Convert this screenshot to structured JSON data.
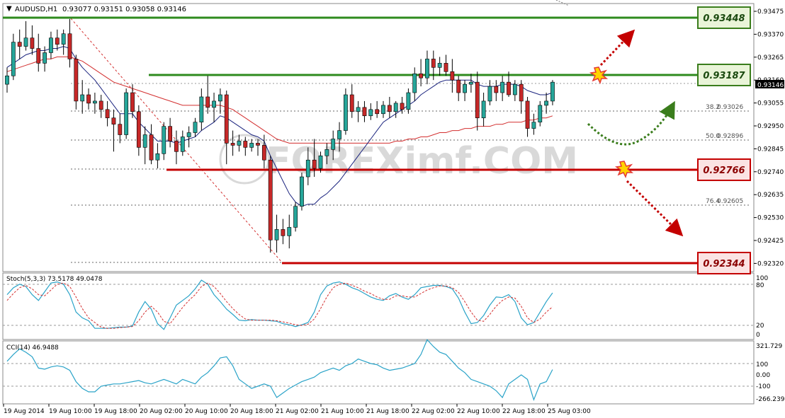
{
  "header": {
    "symbol": "AUDUSD,H1",
    "ohlc": "0.93077 0.93151 0.93058 0.93146"
  },
  "watermark": "FOREXimf.COM",
  "levels": {
    "resist_top": "0.93448",
    "resist_mid": "0.93187",
    "support_mid": "0.92766",
    "support_low": "0.92344",
    "current": "0.93146"
  },
  "fib": [
    {
      "pct": "38.2",
      "value": "0.93026"
    },
    {
      "pct": "50.0",
      "value": "0.92896"
    },
    {
      "pct": "76.4",
      "value": "0.92605"
    }
  ],
  "price_axis_ticks": [
    "0.93475",
    "0.93370",
    "0.93265",
    "0.93160",
    "0.93055",
    "0.92950",
    "0.92845",
    "0.92740",
    "0.92635",
    "0.92530",
    "0.92425",
    "0.92320"
  ],
  "time_axis_ticks": [
    "19 Aug 2014",
    "19 Aug 10:00",
    "19 Aug 18:00",
    "20 Aug 02:00",
    "20 Aug 10:00",
    "20 Aug 18:00",
    "21 Aug 02:00",
    "21 Aug 10:00",
    "21 Aug 18:00",
    "22 Aug 02:00",
    "22 Aug 10:00",
    "22 Aug 18:00",
    "25 Aug 03:00"
  ],
  "stoch": {
    "label": "Stoch(5,3,3) 73.5178 49.0478",
    "ticks": [
      "100",
      "80",
      "20",
      "0"
    ]
  },
  "cci": {
    "label": "CCI(14) 46.9488",
    "ticks": [
      "321.729",
      "100",
      "0.00",
      "-100",
      "-266.2399"
    ]
  },
  "colors": {
    "bull": "#26a69a",
    "bear": "#c62828",
    "resistance": "#2e8b1e",
    "support": "#c40000",
    "ma_fast": "#1a237e",
    "ma_slow": "#d32f2f",
    "stoch_main": "#2aa3c8",
    "stoch_signal": "#d32f2f",
    "cci_line": "#2aa3c8"
  },
  "chart_data": {
    "type": "candlestick",
    "symbol": "AUDUSD",
    "timeframe": "H1",
    "ylim": [
      0.9229,
      0.9349
    ],
    "candles": [
      {
        "o": 0.9314,
        "h": 0.9322,
        "l": 0.931,
        "c": 0.9318
      },
      {
        "o": 0.9318,
        "h": 0.9338,
        "l": 0.9316,
        "c": 0.9334
      },
      {
        "o": 0.9334,
        "h": 0.934,
        "l": 0.9326,
        "c": 0.9332
      },
      {
        "o": 0.9332,
        "h": 0.9344,
        "l": 0.933,
        "c": 0.9336
      },
      {
        "o": 0.9336,
        "h": 0.9342,
        "l": 0.9328,
        "c": 0.9331
      },
      {
        "o": 0.9331,
        "h": 0.9338,
        "l": 0.932,
        "c": 0.9324
      },
      {
        "o": 0.9324,
        "h": 0.9332,
        "l": 0.932,
        "c": 0.9329
      },
      {
        "o": 0.9329,
        "h": 0.9339,
        "l": 0.9326,
        "c": 0.9336
      },
      {
        "o": 0.9336,
        "h": 0.934,
        "l": 0.933,
        "c": 0.9333
      },
      {
        "o": 0.9333,
        "h": 0.934,
        "l": 0.9328,
        "c": 0.9338
      },
      {
        "o": 0.9338,
        "h": 0.9345,
        "l": 0.9322,
        "c": 0.9326
      },
      {
        "o": 0.9326,
        "h": 0.9328,
        "l": 0.9302,
        "c": 0.9306
      },
      {
        "o": 0.9306,
        "h": 0.9316,
        "l": 0.93,
        "c": 0.9309
      },
      {
        "o": 0.9309,
        "h": 0.9312,
        "l": 0.9302,
        "c": 0.9305
      },
      {
        "o": 0.9305,
        "h": 0.931,
        "l": 0.93,
        "c": 0.9306
      },
      {
        "o": 0.9306,
        "h": 0.9309,
        "l": 0.9298,
        "c": 0.9302
      },
      {
        "o": 0.9302,
        "h": 0.9306,
        "l": 0.9294,
        "c": 0.9298
      },
      {
        "o": 0.9298,
        "h": 0.9302,
        "l": 0.9282,
        "c": 0.9295
      },
      {
        "o": 0.9295,
        "h": 0.93,
        "l": 0.9286,
        "c": 0.929
      },
      {
        "o": 0.929,
        "h": 0.9312,
        "l": 0.9288,
        "c": 0.931
      },
      {
        "o": 0.931,
        "h": 0.9314,
        "l": 0.9298,
        "c": 0.9301
      },
      {
        "o": 0.9301,
        "h": 0.9304,
        "l": 0.928,
        "c": 0.9284
      },
      {
        "o": 0.9284,
        "h": 0.9294,
        "l": 0.9276,
        "c": 0.929
      },
      {
        "o": 0.929,
        "h": 0.9295,
        "l": 0.9276,
        "c": 0.9278
      },
      {
        "o": 0.9278,
        "h": 0.9286,
        "l": 0.9274,
        "c": 0.9281
      },
      {
        "o": 0.9281,
        "h": 0.9296,
        "l": 0.9278,
        "c": 0.9294
      },
      {
        "o": 0.9294,
        "h": 0.9298,
        "l": 0.9284,
        "c": 0.9287
      },
      {
        "o": 0.9287,
        "h": 0.9292,
        "l": 0.9276,
        "c": 0.9282
      },
      {
        "o": 0.9282,
        "h": 0.9292,
        "l": 0.928,
        "c": 0.9289
      },
      {
        "o": 0.9289,
        "h": 0.9294,
        "l": 0.9284,
        "c": 0.9291
      },
      {
        "o": 0.9291,
        "h": 0.9298,
        "l": 0.9289,
        "c": 0.9296
      },
      {
        "o": 0.9296,
        "h": 0.9312,
        "l": 0.9292,
        "c": 0.9308
      },
      {
        "o": 0.9308,
        "h": 0.9318,
        "l": 0.93,
        "c": 0.9303
      },
      {
        "o": 0.9303,
        "h": 0.931,
        "l": 0.9296,
        "c": 0.9306
      },
      {
        "o": 0.9306,
        "h": 0.9312,
        "l": 0.93,
        "c": 0.9309
      },
      {
        "o": 0.9309,
        "h": 0.9311,
        "l": 0.9276,
        "c": 0.9286
      },
      {
        "o": 0.9286,
        "h": 0.9292,
        "l": 0.928,
        "c": 0.9285
      },
      {
        "o": 0.9285,
        "h": 0.929,
        "l": 0.9282,
        "c": 0.9287
      },
      {
        "o": 0.9287,
        "h": 0.9289,
        "l": 0.928,
        "c": 0.9284
      },
      {
        "o": 0.9284,
        "h": 0.9288,
        "l": 0.9282,
        "c": 0.9286
      },
      {
        "o": 0.9286,
        "h": 0.9288,
        "l": 0.928,
        "c": 0.9285
      },
      {
        "o": 0.9285,
        "h": 0.929,
        "l": 0.9274,
        "c": 0.9278
      },
      {
        "o": 0.9278,
        "h": 0.928,
        "l": 0.9234,
        "c": 0.924
      },
      {
        "o": 0.924,
        "h": 0.9252,
        "l": 0.9234,
        "c": 0.9245
      },
      {
        "o": 0.9245,
        "h": 0.925,
        "l": 0.9238,
        "c": 0.9242
      },
      {
        "o": 0.9242,
        "h": 0.9252,
        "l": 0.9236,
        "c": 0.9246
      },
      {
        "o": 0.9246,
        "h": 0.9258,
        "l": 0.9244,
        "c": 0.9256
      },
      {
        "o": 0.9256,
        "h": 0.9272,
        "l": 0.9254,
        "c": 0.927
      },
      {
        "o": 0.927,
        "h": 0.9284,
        "l": 0.9266,
        "c": 0.9278
      },
      {
        "o": 0.9278,
        "h": 0.9288,
        "l": 0.927,
        "c": 0.9274
      },
      {
        "o": 0.9274,
        "h": 0.9282,
        "l": 0.9272,
        "c": 0.928
      },
      {
        "o": 0.928,
        "h": 0.9286,
        "l": 0.9276,
        "c": 0.9283
      },
      {
        "o": 0.9283,
        "h": 0.9292,
        "l": 0.9278,
        "c": 0.9288
      },
      {
        "o": 0.9288,
        "h": 0.9296,
        "l": 0.9282,
        "c": 0.9292
      },
      {
        "o": 0.9292,
        "h": 0.9312,
        "l": 0.929,
        "c": 0.9309
      },
      {
        "o": 0.9309,
        "h": 0.9314,
        "l": 0.9298,
        "c": 0.9301
      },
      {
        "o": 0.9301,
        "h": 0.9306,
        "l": 0.9296,
        "c": 0.9303
      },
      {
        "o": 0.9303,
        "h": 0.9306,
        "l": 0.9296,
        "c": 0.9299
      },
      {
        "o": 0.9299,
        "h": 0.9305,
        "l": 0.9297,
        "c": 0.9302
      },
      {
        "o": 0.9302,
        "h": 0.9306,
        "l": 0.9298,
        "c": 0.93
      },
      {
        "o": 0.93,
        "h": 0.9306,
        "l": 0.9298,
        "c": 0.9304
      },
      {
        "o": 0.9304,
        "h": 0.9308,
        "l": 0.9298,
        "c": 0.9301
      },
      {
        "o": 0.9301,
        "h": 0.9306,
        "l": 0.9298,
        "c": 0.9305
      },
      {
        "o": 0.9305,
        "h": 0.9308,
        "l": 0.93,
        "c": 0.9302
      },
      {
        "o": 0.9302,
        "h": 0.9312,
        "l": 0.93,
        "c": 0.931
      },
      {
        "o": 0.931,
        "h": 0.9322,
        "l": 0.9306,
        "c": 0.9319
      },
      {
        "o": 0.9319,
        "h": 0.9326,
        "l": 0.9313,
        "c": 0.9317
      },
      {
        "o": 0.9317,
        "h": 0.933,
        "l": 0.9314,
        "c": 0.9326
      },
      {
        "o": 0.9326,
        "h": 0.933,
        "l": 0.9316,
        "c": 0.9322
      },
      {
        "o": 0.9322,
        "h": 0.9327,
        "l": 0.9318,
        "c": 0.9324
      },
      {
        "o": 0.9324,
        "h": 0.9328,
        "l": 0.9318,
        "c": 0.932
      },
      {
        "o": 0.932,
        "h": 0.9326,
        "l": 0.931,
        "c": 0.9316
      },
      {
        "o": 0.9316,
        "h": 0.9318,
        "l": 0.9306,
        "c": 0.931
      },
      {
        "o": 0.931,
        "h": 0.9316,
        "l": 0.9306,
        "c": 0.9314
      },
      {
        "o": 0.9314,
        "h": 0.9319,
        "l": 0.931,
        "c": 0.9315
      },
      {
        "o": 0.9315,
        "h": 0.932,
        "l": 0.9292,
        "c": 0.9298
      },
      {
        "o": 0.9298,
        "h": 0.931,
        "l": 0.9294,
        "c": 0.9306
      },
      {
        "o": 0.9306,
        "h": 0.9316,
        "l": 0.9304,
        "c": 0.9313
      },
      {
        "o": 0.9313,
        "h": 0.9316,
        "l": 0.9306,
        "c": 0.931
      },
      {
        "o": 0.931,
        "h": 0.9318,
        "l": 0.9306,
        "c": 0.9315
      },
      {
        "o": 0.9315,
        "h": 0.932,
        "l": 0.9308,
        "c": 0.9309
      },
      {
        "o": 0.9309,
        "h": 0.9316,
        "l": 0.9306,
        "c": 0.9314
      },
      {
        "o": 0.9314,
        "h": 0.9316,
        "l": 0.93,
        "c": 0.9306
      },
      {
        "o": 0.9306,
        "h": 0.9308,
        "l": 0.9289,
        "c": 0.9293
      },
      {
        "o": 0.9293,
        "h": 0.93,
        "l": 0.929,
        "c": 0.9296
      },
      {
        "o": 0.9296,
        "h": 0.9306,
        "l": 0.9294,
        "c": 0.9304
      },
      {
        "o": 0.9304,
        "h": 0.931,
        "l": 0.93,
        "c": 0.9306
      },
      {
        "o": 0.9306,
        "h": 0.9316,
        "l": 0.9304,
        "c": 0.9315
      }
    ],
    "ma_fast": [
      0.9322,
      0.9324,
      0.9326,
      0.9328,
      0.9329,
      0.933,
      0.933,
      0.9331,
      0.9331,
      0.9332,
      0.9331,
      0.9326,
      0.9322,
      0.9319,
      0.9316,
      0.9312,
      0.9308,
      0.9304,
      0.93,
      0.93,
      0.93,
      0.9296,
      0.9293,
      0.929,
      0.9287,
      0.9287,
      0.9287,
      0.9286,
      0.9287,
      0.9288,
      0.9289,
      0.9292,
      0.9294,
      0.9296,
      0.9299,
      0.9298,
      0.9296,
      0.9294,
      0.9292,
      0.929,
      0.9289,
      0.9287,
      0.928,
      0.9274,
      0.9268,
      0.9262,
      0.9258,
      0.9256,
      0.9257,
      0.9257,
      0.926,
      0.9262,
      0.9265,
      0.9268,
      0.9272,
      0.9276,
      0.928,
      0.9284,
      0.9288,
      0.9292,
      0.9296,
      0.9298,
      0.93,
      0.9302,
      0.9304,
      0.9306,
      0.9309,
      0.9311,
      0.9313,
      0.9315,
      0.9316,
      0.9316,
      0.9316,
      0.9316,
      0.9316,
      0.9314,
      0.9313,
      0.9313,
      0.9313,
      0.9314,
      0.9314,
      0.9314,
      0.9313,
      0.9311,
      0.931,
      0.9309,
      0.9309,
      0.931
    ],
    "ma_slow": [
      0.932,
      0.9321,
      0.9322,
      0.9323,
      0.9324,
      0.9325,
      0.9326,
      0.9326,
      0.9327,
      0.9327,
      0.9327,
      0.9326,
      0.9325,
      0.9323,
      0.9321,
      0.9319,
      0.9317,
      0.9315,
      0.9314,
      0.9313,
      0.9312,
      0.9311,
      0.931,
      0.9309,
      0.9308,
      0.9307,
      0.9306,
      0.9305,
      0.9304,
      0.9304,
      0.9304,
      0.9304,
      0.9304,
      0.9304,
      0.9304,
      0.9303,
      0.9302,
      0.93,
      0.9298,
      0.9296,
      0.9294,
      0.9292,
      0.929,
      0.9288,
      0.9287,
      0.9286,
      0.9286,
      0.9286,
      0.9286,
      0.9286,
      0.9286,
      0.9286,
      0.9286,
      0.9286,
      0.9286,
      0.9286,
      0.9286,
      0.9286,
      0.9286,
      0.9286,
      0.9286,
      0.9286,
      0.9287,
      0.9287,
      0.9288,
      0.9288,
      0.9289,
      0.9289,
      0.929,
      0.9291,
      0.9291,
      0.9292,
      0.9292,
      0.9293,
      0.9293,
      0.9294,
      0.9294,
      0.9294,
      0.9295,
      0.9295,
      0.9296,
      0.9296,
      0.9296,
      0.9297,
      0.9297,
      0.9298,
      0.9298,
      0.9299
    ],
    "stoch_main": [
      70,
      82,
      88,
      84,
      70,
      60,
      75,
      90,
      92,
      88,
      70,
      40,
      30,
      25,
      12,
      12,
      12,
      13,
      14,
      14,
      16,
      40,
      58,
      45,
      20,
      10,
      30,
      52,
      60,
      68,
      80,
      95,
      88,
      70,
      58,
      45,
      36,
      26,
      25,
      27,
      26,
      26,
      25,
      24,
      20,
      18,
      15,
      18,
      22,
      40,
      70,
      85,
      90,
      92,
      88,
      82,
      78,
      72,
      66,
      62,
      60,
      68,
      72,
      66,
      62,
      70,
      82,
      84,
      86,
      86,
      84,
      80,
      64,
      40,
      20,
      22,
      34,
      52,
      66,
      65,
      70,
      58,
      30,
      18,
      22,
      40,
      58,
      73
    ],
    "stoch_signal": [
      60,
      72,
      82,
      86,
      80,
      70,
      68,
      78,
      88,
      90,
      84,
      66,
      46,
      30,
      22,
      14,
      12,
      12,
      13,
      14,
      15,
      25,
      40,
      50,
      40,
      24,
      20,
      34,
      48,
      60,
      70,
      84,
      90,
      84,
      72,
      58,
      46,
      36,
      28,
      26,
      26,
      26,
      26,
      25,
      23,
      21,
      18,
      17,
      19,
      28,
      46,
      66,
      82,
      88,
      90,
      86,
      82,
      76,
      72,
      66,
      62,
      62,
      68,
      68,
      66,
      66,
      72,
      78,
      82,
      85,
      85,
      82,
      74,
      58,
      40,
      26,
      24,
      36,
      50,
      60,
      66,
      64,
      50,
      30,
      22,
      28,
      40,
      49
    ],
    "cci": [
      120,
      180,
      230,
      200,
      160,
      60,
      50,
      70,
      80,
      70,
      40,
      -60,
      -120,
      -150,
      -150,
      -100,
      -90,
      -80,
      -80,
      -70,
      -60,
      -50,
      -70,
      -80,
      -60,
      -40,
      -60,
      -80,
      -40,
      -60,
      -80,
      -20,
      20,
      80,
      150,
      160,
      80,
      -40,
      -80,
      -120,
      -100,
      -80,
      -100,
      -200,
      -160,
      -120,
      -90,
      -60,
      -40,
      -20,
      20,
      40,
      60,
      40,
      80,
      100,
      140,
      120,
      100,
      90,
      60,
      40,
      50,
      60,
      80,
      100,
      180,
      310,
      250,
      200,
      180,
      120,
      60,
      20,
      -40,
      -60,
      -80,
      -100,
      -140,
      -200,
      -80,
      -40,
      0,
      -40,
      -220,
      -80,
      -60,
      47
    ]
  }
}
